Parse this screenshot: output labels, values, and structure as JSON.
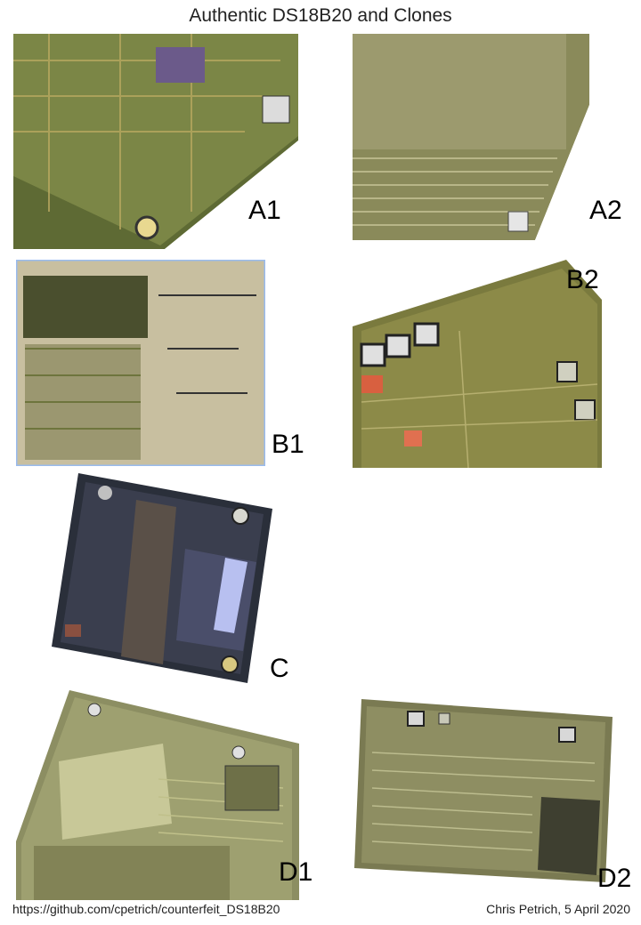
{
  "title": "Authentic DS18B20 and Clones",
  "panels": [
    {
      "label": "A1",
      "description_icon": "chip-die-photo"
    },
    {
      "label": "A2",
      "description_icon": "chip-die-photo"
    },
    {
      "label": "B1",
      "description_icon": "chip-die-photo"
    },
    {
      "label": "B2",
      "description_icon": "chip-die-photo"
    },
    {
      "label": "C",
      "description_icon": "chip-die-photo"
    },
    {
      "label": "D1",
      "description_icon": "chip-die-photo"
    },
    {
      "label": "D2",
      "description_icon": "chip-die-photo"
    }
  ],
  "footer": {
    "url": "https://github.com/cpetrich/counterfeit_DS18B20",
    "credit": "Chris Petrich, 5 April 2020"
  },
  "colors": {
    "die_green": "#6f7a3a",
    "die_gold": "#a89a55",
    "die_dark": "#2a2f3a",
    "die_blue": "#3a3f6a",
    "highlight": "#e8e0b0"
  }
}
